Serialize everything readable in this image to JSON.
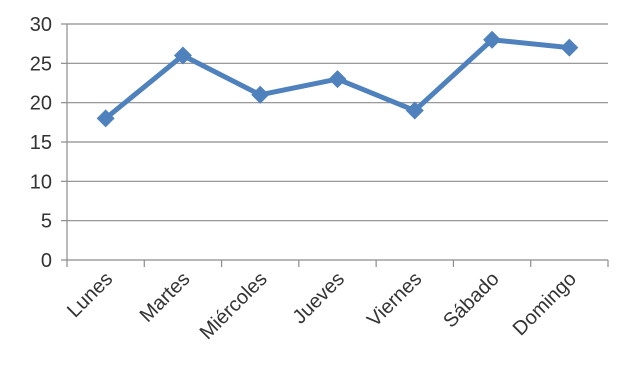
{
  "chart_data": {
    "type": "line",
    "categories": [
      "Lunes",
      "Martes",
      "Miércoles",
      "Jueves",
      "Viernes",
      "Sábado",
      "Domingo"
    ],
    "series": [
      {
        "values": [
          18,
          26,
          21,
          23,
          19,
          28,
          27
        ],
        "color": "#4f81bd",
        "marker": "diamond"
      }
    ],
    "ylim": [
      0,
      30
    ],
    "yticks": [
      "0",
      "5",
      "10",
      "15",
      "20",
      "25",
      "30"
    ],
    "grid": true,
    "legend": "none"
  }
}
